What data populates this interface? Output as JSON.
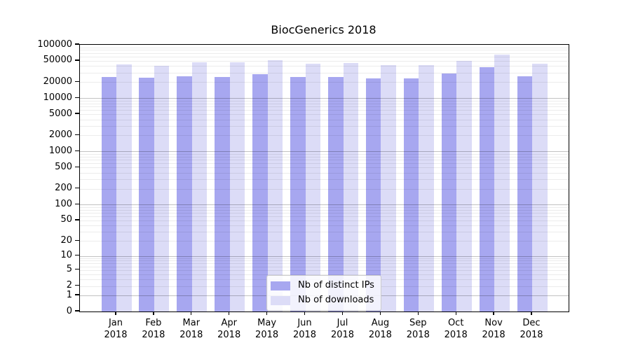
{
  "chart_data": {
    "type": "bar",
    "title": "BiocGenerics 2018",
    "categories": [
      "Jan",
      "Feb",
      "Mar",
      "Apr",
      "May",
      "Jun",
      "Jul",
      "Aug",
      "Sep",
      "Oct",
      "Nov",
      "Dec"
    ],
    "year": "2018",
    "series": [
      {
        "name": "Nb of distinct IPs",
        "color": "#a7a7f0",
        "values": [
          24800,
          24000,
          25800,
          25200,
          28000,
          24800,
          24700,
          23400,
          23600,
          28600,
          37600,
          25600
        ]
      },
      {
        "name": "Nb of downloads",
        "color": "#dcdcf7",
        "values": [
          43300,
          40600,
          47600,
          46800,
          51400,
          44200,
          45600,
          41900,
          41500,
          49400,
          64800,
          43800
        ]
      }
    ],
    "yscale": "log1p",
    "ylim": [
      0,
      100000
    ],
    "y_ticks": [
      0,
      1,
      2,
      5,
      10,
      20,
      50,
      100,
      200,
      500,
      1000,
      2000,
      5000,
      10000,
      20000,
      50000,
      100000
    ],
    "grid": {
      "show": true,
      "major_values": [
        1,
        10,
        100,
        1000,
        10000
      ],
      "minor_decades": [
        1,
        10,
        100,
        1000,
        10000
      ],
      "major_color": "#c2c2c2",
      "minor_color": "#ebebeb"
    },
    "legend": {
      "position": "lower-center",
      "entries": [
        "Nb of distinct IPs",
        "Nb of downloads"
      ]
    }
  }
}
